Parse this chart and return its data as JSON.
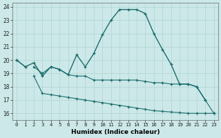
{
  "xlabel": "Humidex (Indice chaleur)",
  "xlim": [
    -0.5,
    23.5
  ],
  "ylim": [
    15.5,
    24.3
  ],
  "xticks": [
    0,
    1,
    2,
    3,
    4,
    5,
    6,
    7,
    8,
    9,
    10,
    11,
    12,
    13,
    14,
    15,
    16,
    17,
    18,
    19,
    20,
    21,
    22,
    23
  ],
  "yticks": [
    16,
    17,
    18,
    19,
    20,
    21,
    22,
    23,
    24
  ],
  "background_color": "#cce8e8",
  "grid_color": "#b0d4d4",
  "line_color": "#1a6b6b",
  "line1_y": [
    20.0,
    19.5,
    null,
    null,
    null,
    null,
    null,
    null,
    null,
    null,
    null,
    null,
    null,
    null,
    null,
    null,
    null,
    null,
    null,
    null,
    null,
    null,
    null,
    null
  ],
  "line1_cont_x": [
    2,
    3,
    4,
    5,
    6,
    7,
    8,
    9,
    10,
    11,
    12,
    13,
    14,
    15,
    16,
    17,
    18,
    19,
    20,
    21,
    22,
    23
  ],
  "line1_cont_y": [
    19.5,
    19.0,
    19.5,
    19.3,
    18.9,
    18.8,
    18.8,
    18.5,
    18.5,
    18.5,
    18.5,
    18.5,
    18.5,
    18.4,
    18.3,
    18.3,
    18.2,
    18.2,
    18.2,
    18.0,
    17.0,
    16.0
  ],
  "line2_x": [
    2,
    3,
    4,
    5,
    6,
    7,
    8,
    9,
    10,
    11,
    12,
    13,
    14,
    15,
    16,
    17,
    18,
    19,
    20,
    21,
    22,
    23
  ],
  "line2_y": [
    18.8,
    17.5,
    17.4,
    17.3,
    17.2,
    17.1,
    17.0,
    16.9,
    16.8,
    16.7,
    16.6,
    16.5,
    16.4,
    16.3,
    16.2,
    16.15,
    16.1,
    16.05,
    16.0,
    16.0,
    16.0,
    16.0
  ],
  "line3_x": [
    0,
    1,
    2,
    3,
    4,
    5,
    6,
    7,
    8,
    9,
    10,
    11,
    12,
    13,
    14,
    15,
    16,
    17,
    18,
    19,
    20,
    21,
    22
  ],
  "line3_y": [
    20.0,
    19.5,
    19.8,
    18.8,
    19.5,
    19.3,
    18.9,
    20.4,
    19.5,
    20.5,
    21.9,
    23.0,
    23.8,
    23.8,
    23.8,
    23.5,
    22.0,
    20.8,
    19.7,
    18.2,
    18.2,
    18.0,
    17.0
  ]
}
